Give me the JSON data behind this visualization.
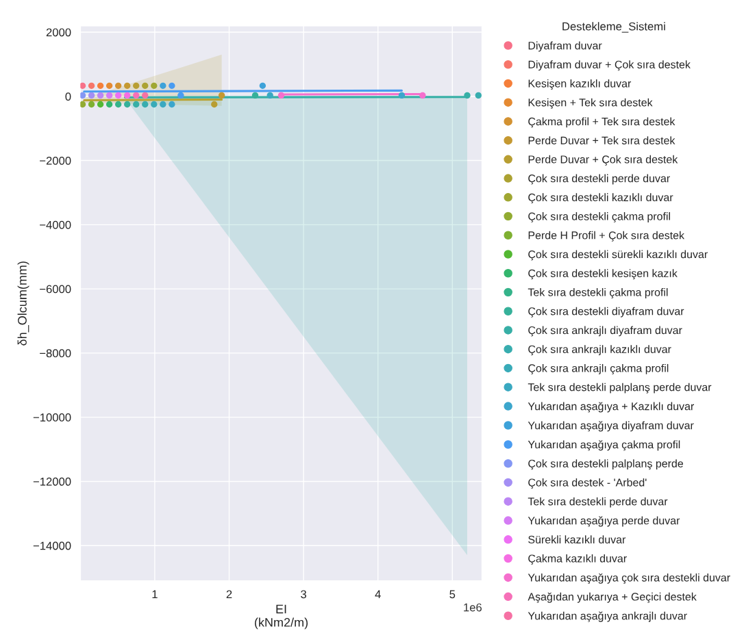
{
  "chart_data": {
    "type": "scatter",
    "xlabel": "EI\n(kNm2/m)",
    "ylabel": "δh_Olcum(mm)",
    "legend_title": "Destekleme_Sistemi",
    "xlim": [
      0,
      5.4
    ],
    "ylim": [
      -15100,
      2200
    ],
    "xticks": [
      1,
      2,
      3,
      4,
      5
    ],
    "yticks": [
      2000,
      0,
      {
        "value": -2000,
        "label": "−2000"
      },
      {
        "value": -4000,
        "label": "−4000"
      },
      {
        "value": -6000,
        "label": "−6000"
      },
      {
        "value": -8000,
        "label": "−8000"
      },
      {
        "value": -10000,
        "label": "−10000"
      },
      {
        "value": -12000,
        "label": "−12000"
      },
      {
        "value": -14000,
        "label": "−14000"
      }
    ],
    "annotations": [
      "1e6"
    ],
    "grid": true,
    "legend": "right",
    "marker": "circle",
    "series": [
      {
        "name": "Diyafram duvar",
        "color": "#f77189",
        "x": [
          0.03
        ],
        "values": [
          330
        ]
      },
      {
        "name": "Diyafram duvar + Çok sıra destek",
        "color": "#f7766a",
        "x": [
          0.15
        ],
        "values": [
          330
        ]
      },
      {
        "name": "Kesişen kazıklı duvar",
        "color": "#f57f3a",
        "x": [
          0.27
        ],
        "values": [
          330
        ]
      },
      {
        "name": "Kesişen + Tek sıra destek",
        "color": "#e58a32",
        "x": [
          0.39
        ],
        "values": [
          330
        ]
      },
      {
        "name": "Çakma profil + Tek sıra destek",
        "color": "#d39232",
        "x": [
          0.51
        ],
        "values": [
          330
        ]
      },
      {
        "name": "Perde Duvar + Tek sıra destek",
        "color": "#c59932",
        "x": [
          0.63,
          1.9
        ],
        "values": [
          330,
          30
        ]
      },
      {
        "name": "Perde Duvar + Çok sıra destek",
        "color": "#b89e32",
        "x": [
          0.75,
          1.8
        ],
        "values": [
          330,
          -250
        ]
      },
      {
        "name": "Çok sıra destekli perde duvar",
        "color": "#aca232",
        "x": [
          0.87
        ],
        "values": [
          330
        ]
      },
      {
        "name": "Çok sıra destekli kazıklı duvar",
        "color": "#a0a732",
        "x": [
          0.99
        ],
        "values": [
          330
        ]
      },
      {
        "name": "Çok sıra destekli çakma profil",
        "color": "#92ab32",
        "x": [
          0.03
        ],
        "values": [
          -250
        ]
      },
      {
        "name": "Perde H Profil + Çok sıra destek",
        "color": "#7fb032",
        "x": [
          0.15
        ],
        "values": [
          -250
        ]
      },
      {
        "name": "Çok sıra destekli sürekli kazıklı duvar",
        "color": "#54b833",
        "x": [
          0.27
        ],
        "values": [
          -250
        ]
      },
      {
        "name": "Çok sıra destekli kesişen kazık",
        "color": "#33b66d",
        "x": [
          0.39
        ],
        "values": [
          -250
        ]
      },
      {
        "name": "Tek sıra destekli çakma profil",
        "color": "#35b38a",
        "x": [
          0.51
        ],
        "values": [
          -250
        ]
      },
      {
        "name": "Çok sıra destekli diyafram duvar",
        "color": "#36b19a",
        "x": [
          0.63,
          2.35
        ],
        "values": [
          -250,
          30
        ]
      },
      {
        "name": "Çok sıra ankrajlı diyafram duvar",
        "color": "#37afa6",
        "x": [
          0.75,
          5.2
        ],
        "values": [
          -250,
          30
        ]
      },
      {
        "name": "Çok sıra ankrajlı kazıklı duvar",
        "color": "#38adaf",
        "x": [
          0.87,
          5.35
        ],
        "values": [
          -250,
          30
        ]
      },
      {
        "name": "Çok sıra ankrajlı çakma profil",
        "color": "#39abb8",
        "x": [
          0.99
        ],
        "values": [
          -250
        ]
      },
      {
        "name": "Tek sıra destekli palplanş perde duvar",
        "color": "#3aa9c1",
        "x": [
          1.11,
          2.55
        ],
        "values": [
          -250,
          30
        ]
      },
      {
        "name": "Yukarıdan aşağıya + Kazıklı duvar",
        "color": "#3ca6cc",
        "x": [
          1.23,
          4.32
        ],
        "values": [
          -250,
          30
        ]
      },
      {
        "name": "Yukarıdan aşağıya diyafram duvar",
        "color": "#3ea2d9",
        "x": [
          1.11,
          2.45
        ],
        "values": [
          330,
          330
        ]
      },
      {
        "name": "Yukarıdan aşağıya çakma profil",
        "color": "#4a9cf1",
        "x": [
          1.23,
          1.35
        ],
        "values": [
          330,
          30
        ]
      },
      {
        "name": "Çok sıra destekli palplanş perde",
        "color": "#8497f4",
        "x": [
          0.03
        ],
        "values": [
          30
        ]
      },
      {
        "name": "Çok sıra destek - 'Arbed'",
        "color": "#a48ff4",
        "x": [
          0.15
        ],
        "values": [
          30
        ]
      },
      {
        "name": "Tek sıra destekli perde duvar",
        "color": "#bb86f4",
        "x": [
          0.27
        ],
        "values": [
          30
        ]
      },
      {
        "name": "Yukarıdan aşağıya perde duvar",
        "color": "#d47cf4",
        "x": [
          0.39
        ],
        "values": [
          30
        ]
      },
      {
        "name": "Sürekli kazıklı duvar",
        "color": "#ed6ff3",
        "x": [
          0.51
        ],
        "values": [
          30
        ]
      },
      {
        "name": "Çakma kazıklı duvar",
        "color": "#f56ee3",
        "x": [
          0.63
        ],
        "values": [
          30
        ]
      },
      {
        "name": "Yukarıdan aşağıya çok sıra destekli duvar",
        "color": "#f56fcd",
        "x": [
          2.7,
          4.6
        ],
        "values": [
          30,
          30
        ]
      },
      {
        "name": "Aşağıdan yukarıya + Geçici destek",
        "color": "#f670b8",
        "x": [
          0.75
        ],
        "values": [
          30
        ]
      },
      {
        "name": "Yukarıdan aşağıya ankrajlı duvar",
        "color": "#f671a4",
        "x": [
          0.87
        ],
        "values": [
          30
        ]
      },
      {
        "type": "line",
        "marker": "none",
        "color": "#b8a232",
        "x": [
          0.05,
          1.9
        ],
        "values": [
          -120,
          -100
        ],
        "lower": [
          -200,
          -300
        ],
        "upper": [
          -60,
          1300
        ]
      },
      {
        "type": "line",
        "marker": "none",
        "color": "#37afa6",
        "x": [
          0.6,
          5.2
        ],
        "values": [
          -30,
          -20
        ],
        "lower": [
          -60,
          -14300
        ],
        "upper": [
          0,
          20
        ]
      },
      {
        "type": "line",
        "marker": "none",
        "color": "#4a9cf1",
        "x": [
          0.05,
          4.32
        ],
        "values": [
          150,
          180
        ]
      },
      {
        "type": "line",
        "marker": "none",
        "color": "#f56fcd",
        "x": [
          2.7,
          4.6
        ],
        "values": [
          60,
          70
        ]
      }
    ]
  }
}
